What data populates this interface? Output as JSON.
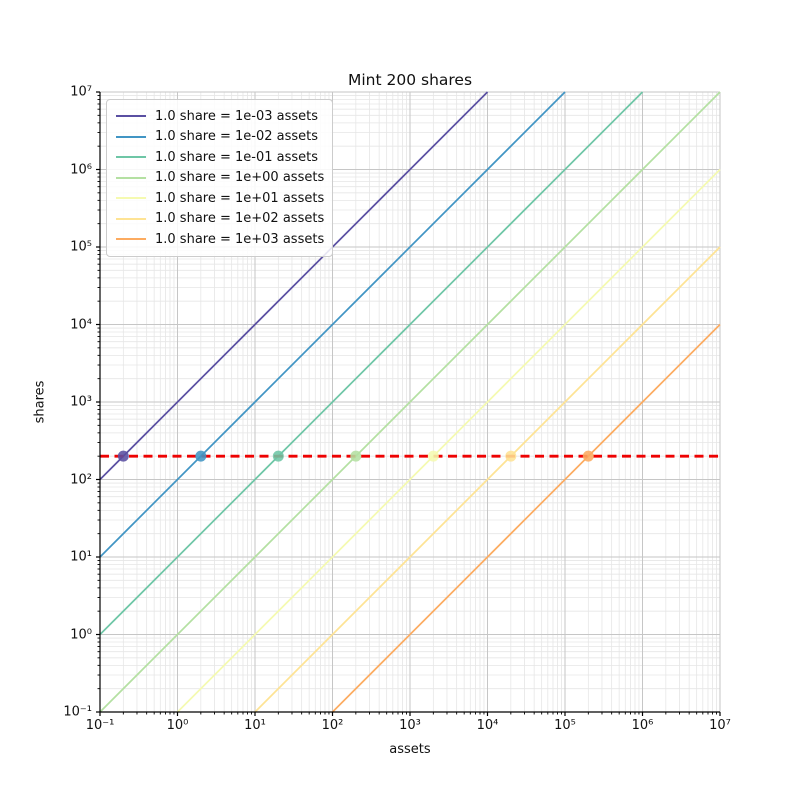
{
  "chart_data": {
    "type": "line",
    "title": "Mint 200 shares",
    "xlabel": "assets",
    "ylabel": "shares",
    "xscale": "log",
    "yscale": "log",
    "xlim": [
      0.1,
      10000000
    ],
    "ylim": [
      0.1,
      10000000
    ],
    "x_tick_labels": [
      "10⁻¹",
      "10⁰",
      "10¹",
      "10²",
      "10³",
      "10⁴",
      "10⁵",
      "10⁶",
      "10⁷"
    ],
    "y_tick_labels": [
      "10⁻¹",
      "10⁰",
      "10¹",
      "10²",
      "10³",
      "10⁴",
      "10⁵",
      "10⁶",
      "10⁷"
    ],
    "grid": {
      "enabled": true,
      "major_color": "#c6c6c6",
      "minor_color": "#e6e6e6"
    },
    "legend_position": "upper left",
    "series": [
      {
        "label": "1.0 share = 1e-03 assets",
        "assets_per_share": 0.001,
        "color": "#5a4fa2",
        "marker": {
          "assets": 0.2,
          "shares": 200
        }
      },
      {
        "label": "1.0 share = 1e-02 assets",
        "assets_per_share": 0.01,
        "color": "#4195c4",
        "marker": {
          "assets": 2,
          "shares": 200
        }
      },
      {
        "label": "1.0 share = 1e-01 assets",
        "assets_per_share": 0.1,
        "color": "#6ec6a6",
        "marker": {
          "assets": 20,
          "shares": 200
        }
      },
      {
        "label": "1.0 share = 1e+00 assets",
        "assets_per_share": 1,
        "color": "#b4e0a2",
        "marker": {
          "assets": 200,
          "shares": 200
        }
      },
      {
        "label": "1.0 share = 1e+01 assets",
        "assets_per_share": 10,
        "color": "#f5fab0",
        "marker": {
          "assets": 2000,
          "shares": 200
        }
      },
      {
        "label": "1.0 share = 1e+02 assets",
        "assets_per_share": 100,
        "color": "#fee394",
        "marker": {
          "assets": 20000,
          "shares": 200
        }
      },
      {
        "label": "1.0 share = 1e+03 assets",
        "assets_per_share": 1000,
        "color": "#fcab60",
        "marker": {
          "assets": 200000,
          "shares": 200
        }
      }
    ],
    "reference_line": {
      "shares": 200,
      "color": "#ee0202",
      "style": "dashed"
    }
  }
}
